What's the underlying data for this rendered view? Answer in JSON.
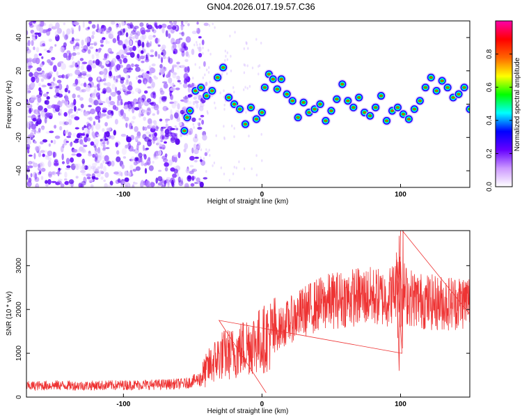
{
  "page_title": "GN04.2026.017.19.57.C36",
  "chart_data": [
    {
      "type": "heatmap",
      "name": "spectrogram",
      "xlabel": "Height of straight line (km)",
      "ylabel": "Frequency (Hz)",
      "xlim": [
        -170,
        150
      ],
      "ylim": [
        -50,
        50
      ],
      "xticks": [
        -100,
        0,
        100
      ],
      "yticks": [
        -40,
        -20,
        0,
        20,
        40
      ],
      "colorbar": {
        "label": "Normalized spectral amplitude",
        "range": [
          0.0,
          1.0
        ],
        "ticks": [
          0.0,
          0.2,
          0.4,
          0.6,
          0.8
        ],
        "tick_labels": [
          "0.0",
          "0.2",
          "0.4",
          "0.6",
          "0.8"
        ],
        "colors": [
          "#ffffff",
          "#cc99ff",
          "#6600ff",
          "#0000ff",
          "#00ffff",
          "#00ff00",
          "#ffff00",
          "#ff6600",
          "#ff0000",
          "#ff00aa"
        ]
      },
      "noise_region_x": [
        -170,
        -50
      ],
      "signal_trace": [
        {
          "x": -56,
          "y": -16
        },
        {
          "x": -54,
          "y": -8
        },
        {
          "x": -52,
          "y": -4
        },
        {
          "x": -48,
          "y": 8
        },
        {
          "x": -44,
          "y": 10
        },
        {
          "x": -40,
          "y": 5
        },
        {
          "x": -36,
          "y": 8
        },
        {
          "x": -32,
          "y": 16
        },
        {
          "x": -28,
          "y": 22
        },
        {
          "x": -24,
          "y": 4
        },
        {
          "x": -20,
          "y": 0
        },
        {
          "x": -16,
          "y": -3
        },
        {
          "x": -12,
          "y": -12
        },
        {
          "x": -8,
          "y": -2
        },
        {
          "x": -4,
          "y": -9
        },
        {
          "x": 0,
          "y": -5
        },
        {
          "x": 2,
          "y": 10
        },
        {
          "x": 5,
          "y": 18
        },
        {
          "x": 8,
          "y": 15
        },
        {
          "x": 11,
          "y": 9
        },
        {
          "x": 14,
          "y": 15
        },
        {
          "x": 18,
          "y": 6
        },
        {
          "x": 22,
          "y": 2
        },
        {
          "x": 26,
          "y": -8
        },
        {
          "x": 30,
          "y": 1
        },
        {
          "x": 34,
          "y": -5
        },
        {
          "x": 38,
          "y": -3
        },
        {
          "x": 42,
          "y": 0
        },
        {
          "x": 46,
          "y": -10
        },
        {
          "x": 50,
          "y": -4
        },
        {
          "x": 54,
          "y": 3
        },
        {
          "x": 58,
          "y": 12
        },
        {
          "x": 62,
          "y": 2
        },
        {
          "x": 66,
          "y": -2
        },
        {
          "x": 70,
          "y": 4
        },
        {
          "x": 74,
          "y": -5
        },
        {
          "x": 78,
          "y": -7
        },
        {
          "x": 82,
          "y": -2
        },
        {
          "x": 86,
          "y": 5
        },
        {
          "x": 90,
          "y": -10
        },
        {
          "x": 94,
          "y": -4
        },
        {
          "x": 98,
          "y": -2
        },
        {
          "x": 102,
          "y": -6
        },
        {
          "x": 106,
          "y": -9
        },
        {
          "x": 110,
          "y": -3
        },
        {
          "x": 114,
          "y": 2
        },
        {
          "x": 118,
          "y": 10
        },
        {
          "x": 122,
          "y": 16
        },
        {
          "x": 126,
          "y": 8
        },
        {
          "x": 130,
          "y": 14
        },
        {
          "x": 134,
          "y": 10
        },
        {
          "x": 138,
          "y": 4
        },
        {
          "x": 142,
          "y": 6
        },
        {
          "x": 146,
          "y": 10
        },
        {
          "x": 150,
          "y": -3
        }
      ]
    },
    {
      "type": "line",
      "name": "snr",
      "xlabel": "Height of straight line (km)",
      "ylabel": "SNR (10 * v/v)",
      "xlim": [
        -170,
        150
      ],
      "ylim": [
        0,
        3800
      ],
      "xticks": [
        -100,
        0,
        100
      ],
      "yticks": [
        0,
        1000,
        2000,
        3000
      ],
      "color": "#ee3333",
      "series": [
        {
          "x": -170,
          "y": 250
        },
        {
          "x": -150,
          "y": 270
        },
        {
          "x": -130,
          "y": 260
        },
        {
          "x": -110,
          "y": 270
        },
        {
          "x": -90,
          "y": 280
        },
        {
          "x": -70,
          "y": 290
        },
        {
          "x": -55,
          "y": 310
        },
        {
          "x": -45,
          "y": 420
        },
        {
          "x": -38,
          "y": 700
        },
        {
          "x": -30,
          "y": 950
        },
        {
          "x": -20,
          "y": 1000
        },
        {
          "x": -10,
          "y": 1200
        },
        {
          "x": 0,
          "y": 1300
        },
        {
          "x": 10,
          "y": 1500
        },
        {
          "x": 20,
          "y": 1750
        },
        {
          "x": 30,
          "y": 1950
        },
        {
          "x": 40,
          "y": 2100
        },
        {
          "x": 50,
          "y": 2200
        },
        {
          "x": 60,
          "y": 2250
        },
        {
          "x": 70,
          "y": 2300
        },
        {
          "x": 80,
          "y": 2300
        },
        {
          "x": 90,
          "y": 2250
        },
        {
          "x": 95,
          "y": 2400
        },
        {
          "x": 99,
          "y": 2600
        },
        {
          "x": 105,
          "y": 2300
        },
        {
          "x": 115,
          "y": 2200
        },
        {
          "x": 125,
          "y": 2150
        },
        {
          "x": 135,
          "y": 2150
        },
        {
          "x": 150,
          "y": 2200
        }
      ],
      "spikes": [
        {
          "x": 100,
          "y": 3850
        },
        {
          "x": 99,
          "y": 600
        },
        {
          "x": 97,
          "y": 3300
        },
        {
          "x": 101,
          "y": 1000
        },
        {
          "x": -31,
          "y": 1750
        },
        {
          "x": 3,
          "y": 100
        }
      ]
    }
  ]
}
